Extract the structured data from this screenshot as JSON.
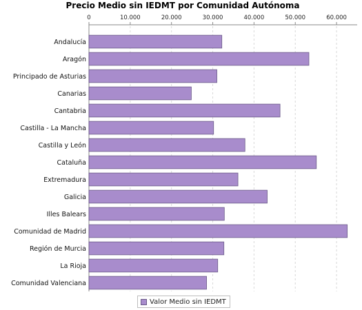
{
  "chart_data": {
    "type": "bar",
    "orientation": "horizontal",
    "title": "Precio Medio sin IEDMT por Comunidad Autónoma",
    "categories": [
      "Andalucía",
      "Aragón",
      "Principado de Asturias",
      "Canarias",
      "Cantabria",
      "Castilla - La Mancha",
      "Castilla y León",
      "Cataluña",
      "Extremadura",
      "Galicia",
      "Illes Balears",
      "Comunidad de Madrid",
      "Región de Murcia",
      "La Rioja",
      "Comunidad Valenciana"
    ],
    "series": [
      {
        "name": "Valor Medio sin IEDMT",
        "values": [
          32200,
          53300,
          31000,
          24800,
          46300,
          30200,
          37800,
          55100,
          36100,
          43200,
          32800,
          62600,
          32700,
          31200,
          28500
        ]
      }
    ],
    "xlim": [
      0,
      65000
    ],
    "ticks": [
      0,
      10000,
      20000,
      30000,
      40000,
      50000,
      60000
    ],
    "tick_labels": [
      "0",
      "10.000",
      "20.000",
      "30.000",
      "40.000",
      "50.000",
      "60.000"
    ],
    "grid": true,
    "axis_position": "top",
    "legend_position": "bottom",
    "colors": {
      "bar": "#a88ccc",
      "bar_border": "#6a5a88",
      "grid": "#d8d8d8"
    }
  }
}
